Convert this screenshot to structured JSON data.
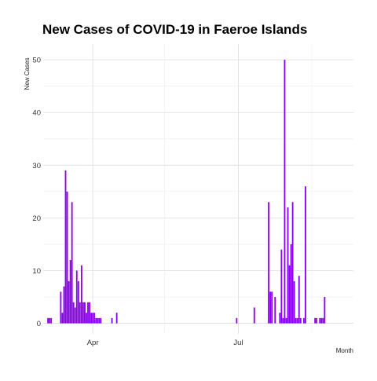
{
  "chart_data": {
    "type": "bar",
    "title": "New Cases of COVID-19 in Faeroe Islands",
    "xlabel": "Month",
    "ylabel": "New Cases",
    "x_tick_labels": [
      "Apr",
      "Jul"
    ],
    "y_ticks": [
      0,
      10,
      20,
      30,
      40,
      50
    ],
    "ylim": [
      -2,
      53
    ],
    "xlim": [
      "2020-03-01",
      "2020-09-11"
    ],
    "grid": true,
    "legend": "none",
    "bar_color": "#8B00EE",
    "dates": [
      "2020-03-04",
      "2020-03-05",
      "2020-03-06",
      "2020-03-12",
      "2020-03-13",
      "2020-03-14",
      "2020-03-15",
      "2020-03-16",
      "2020-03-17",
      "2020-03-18",
      "2020-03-19",
      "2020-03-20",
      "2020-03-21",
      "2020-03-22",
      "2020-03-23",
      "2020-03-24",
      "2020-03-25",
      "2020-03-26",
      "2020-03-27",
      "2020-03-28",
      "2020-03-29",
      "2020-03-30",
      "2020-03-31",
      "2020-04-01",
      "2020-04-02",
      "2020-04-03",
      "2020-04-04",
      "2020-04-05",
      "2020-04-06",
      "2020-04-13",
      "2020-04-16",
      "2020-06-30",
      "2020-07-11",
      "2020-07-20",
      "2020-07-21",
      "2020-07-22",
      "2020-07-24",
      "2020-07-27",
      "2020-07-28",
      "2020-07-29",
      "2020-07-30",
      "2020-07-31",
      "2020-08-01",
      "2020-08-02",
      "2020-08-03",
      "2020-08-04",
      "2020-08-05",
      "2020-08-06",
      "2020-08-07",
      "2020-08-08",
      "2020-08-09",
      "2020-08-11",
      "2020-08-12",
      "2020-08-18",
      "2020-08-19",
      "2020-08-21",
      "2020-08-22",
      "2020-08-23",
      "2020-08-24"
    ],
    "values": [
      1,
      1,
      1,
      6,
      2,
      7,
      29,
      25,
      8,
      12,
      23,
      4,
      3,
      10,
      8,
      4,
      11,
      4,
      4,
      2,
      4,
      4,
      2,
      2,
      2,
      1,
      1,
      1,
      1,
      1,
      2,
      1,
      3,
      23,
      6,
      6,
      5,
      2,
      14,
      1,
      50,
      1,
      22,
      11,
      15,
      23,
      8,
      1,
      1,
      9,
      1,
      1,
      26,
      1,
      1,
      1,
      1,
      1,
      5
    ]
  }
}
